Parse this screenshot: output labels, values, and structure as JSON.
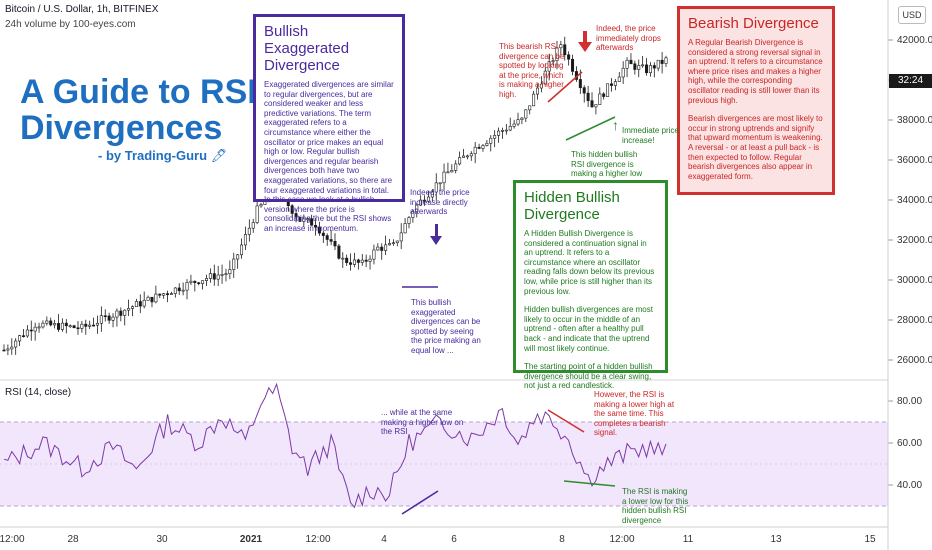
{
  "header": {
    "title": "Bitcoin / U.S. Dollar, 1h, BITFINEX",
    "volume": "24h volume by 100-eyes.com",
    "currency": "USD",
    "price_badge": "32:24"
  },
  "guide": {
    "title_line1": "A Guide to RSI",
    "title_line2": "Divergences",
    "byline": "- by Trading-Guru",
    "byline_icon": "magic-wand-icon"
  },
  "boxes": {
    "bullish_exag": {
      "title": "Bullish Exaggerated Divergence",
      "p1": "Exaggerated divergences are similar to regular divergences, but are considered weaker and less predictive variations. The term exaggerated refers to a circumstance where either the oscillator or price makes an equal high or low. Regular bullish divergences and regular bearish divergences both have two exaggerated variations, so there are four exaggerated variations in total. In this case we look at a bullish version where the price is consolidating the but the RSI shows an increase in momentum.",
      "color": "#4b2a9e"
    },
    "hidden_bull": {
      "title": "Hidden Bullish Divergence",
      "p1": "A Hidden Bullish Divergence is considered a continuation signal in an uptrend. It refers to a circumstance where an oscillator reading falls down below its previous low, while price is still higher than its previous low.",
      "p2": "Hidden bullish divergences are most likely to occur in the middle of an uptrend - often after a healthy pull back - and indicate that the uptrend will most likely continue.",
      "p3": "The starting point of a hidden bullish divergence should be a clear swing, not just a red candlestick.",
      "color": "#2e8b2e"
    },
    "bearish": {
      "title": "Bearish Divergence",
      "p1": "A Regular Bearish Divergence is considered a strong reversal signal in an uptrend. It refers to a circumstance where price rises and makes a higher high, while the corresponding oscillator reading is still lower than its previous high.",
      "p2": "Bearish divergences are most likely to occur in strong uptrends and signify that upward momentum is weakening. A reversal - or at least a pull back - is then expected to follow. Regular bearish divergences also appear in exaggerated form.",
      "color": "#d03030"
    }
  },
  "annotations": {
    "indeed_increase": "Indeed, the price increase directly afterwards",
    "exag_spotted": "This bullish exaggerated divergences can be spotted by seeing the price making an equal low ...",
    "rsi_higher_low": "... while at the same making a higher low on the RSI",
    "bear_spotted": "This bearish RSI divergence can be spotted by looking at the price, which is making a higher high.",
    "indeed_drops": "Indeed, the price immediately drops afterwards",
    "immediate_increase": "Immediate price increase!",
    "hidden_rsi_note": "This hidden bullish RSI divergence is making a higher low",
    "rsi_lower_high": "However, the RSI is making a lower high at the same time. This completes a bearish signal.",
    "rsi_lower_low": "The RSI is making a lower low for this hidden bullish RSI divergence"
  },
  "rsi_panel": {
    "label": "RSI (14, close)"
  },
  "chart_data": [
    {
      "type": "candlestick",
      "title": "Bitcoin / U.S. Dollar, 1h, BITFINEX",
      "ylim": [
        25000,
        44000
      ],
      "yticks": [
        "26000.0",
        "28000.0",
        "30000.0",
        "32000.0",
        "34000.0",
        "36000.0",
        "38000.0",
        "40000.0",
        "42000.0"
      ],
      "x_ticks": [
        "12:00",
        "28",
        "30",
        "2021",
        "12:00",
        "4",
        "6",
        "8",
        "12:00",
        "11",
        "13",
        "15"
      ],
      "bold_tick": "2021",
      "anchors": [
        {
          "x": 0,
          "price": 26500
        },
        {
          "x": 8,
          "price": 27800
        },
        {
          "x": 20,
          "price": 27600
        },
        {
          "x": 32,
          "price": 28600
        },
        {
          "x": 42,
          "price": 29400
        },
        {
          "x": 50,
          "price": 30000
        },
        {
          "x": 58,
          "price": 30400
        },
        {
          "x": 65,
          "price": 33500
        },
        {
          "x": 70,
          "price": 34500
        },
        {
          "x": 76,
          "price": 33000
        },
        {
          "x": 80,
          "price": 32800
        },
        {
          "x": 87,
          "price": 31000
        },
        {
          "x": 92,
          "price": 30800
        },
        {
          "x": 96,
          "price": 31600
        },
        {
          "x": 100,
          "price": 31700
        },
        {
          "x": 105,
          "price": 33500
        },
        {
          "x": 112,
          "price": 35000
        },
        {
          "x": 120,
          "price": 36500
        },
        {
          "x": 128,
          "price": 37500
        },
        {
          "x": 133,
          "price": 38000
        },
        {
          "x": 138,
          "price": 40000
        },
        {
          "x": 143,
          "price": 41800
        },
        {
          "x": 147,
          "price": 40200
        },
        {
          "x": 151,
          "price": 38700
        },
        {
          "x": 155,
          "price": 39600
        },
        {
          "x": 160,
          "price": 40800
        },
        {
          "x": 165,
          "price": 40500
        },
        {
          "x": 170,
          "price": 41000
        }
      ]
    },
    {
      "type": "line",
      "title": "RSI (14, close)",
      "ylim": [
        20,
        90
      ],
      "yticks": [
        "40.00",
        "60.00",
        "80.00"
      ],
      "band": [
        30,
        70
      ],
      "anchors": [
        {
          "x": 0,
          "rsi": 50
        },
        {
          "x": 10,
          "rsi": 60
        },
        {
          "x": 20,
          "rsi": 48
        },
        {
          "x": 28,
          "rsi": 58
        },
        {
          "x": 34,
          "rsi": 47
        },
        {
          "x": 42,
          "rsi": 70
        },
        {
          "x": 50,
          "rsi": 60
        },
        {
          "x": 56,
          "rsi": 73
        },
        {
          "x": 62,
          "rsi": 60
        },
        {
          "x": 66,
          "rsi": 80
        },
        {
          "x": 70,
          "rsi": 85
        },
        {
          "x": 74,
          "rsi": 58
        },
        {
          "x": 78,
          "rsi": 48
        },
        {
          "x": 84,
          "rsi": 60
        },
        {
          "x": 89,
          "rsi": 30
        },
        {
          "x": 94,
          "rsi": 38
        },
        {
          "x": 99,
          "rsi": 36
        },
        {
          "x": 104,
          "rsi": 60
        },
        {
          "x": 112,
          "rsi": 70
        },
        {
          "x": 120,
          "rsi": 62
        },
        {
          "x": 128,
          "rsi": 76
        },
        {
          "x": 132,
          "rsi": 60
        },
        {
          "x": 137,
          "rsi": 74
        },
        {
          "x": 141,
          "rsi": 71
        },
        {
          "x": 145,
          "rsi": 62
        },
        {
          "x": 150,
          "rsi": 43
        },
        {
          "x": 155,
          "rsi": 50
        },
        {
          "x": 160,
          "rsi": 55
        },
        {
          "x": 165,
          "rsi": 58
        },
        {
          "x": 170,
          "rsi": 55
        }
      ]
    }
  ],
  "colors": {
    "up": "#1a1a1a",
    "down": "#1a1a1a",
    "rsi_line": "#7b3aa6",
    "rsi_band": "#f1e6fb",
    "purple": "#4b2a9e",
    "red": "#d03030",
    "green": "#2e8b2e"
  }
}
